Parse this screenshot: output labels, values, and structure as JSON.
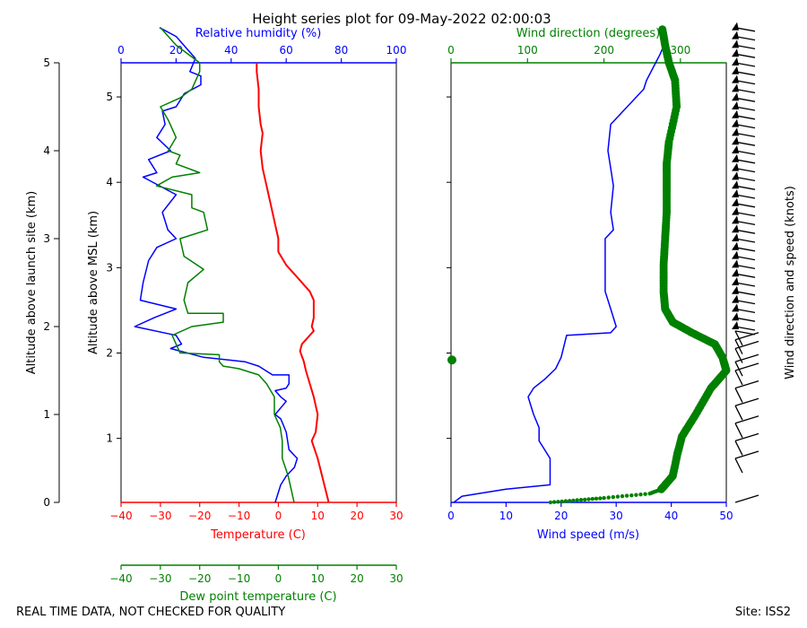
{
  "title": "Height series plot for 09-May-2022 02:00:03",
  "footer_left": "REAL TIME DATA, NOT CHECKED FOR QUALITY",
  "footer_right": "Site: ISS2",
  "colors": {
    "temperature": "#ff0000",
    "dewpoint": "#008000",
    "rh": "#0000ff",
    "wind_speed": "#0000ff",
    "wind_dir": "#008000",
    "barb": "#000000"
  },
  "axes": {
    "alt_launch_label": "Altitude above launch site (km)",
    "alt_launch_ticks": [
      0,
      1,
      2,
      3,
      4,
      5
    ],
    "alt_msl_label": "Altitude above MSL (km)",
    "alt_msl_ticks": [
      1,
      2,
      3,
      4,
      5
    ],
    "temp_label": "Temperature (C)",
    "temp_ticks": [
      -40,
      -30,
      -20,
      -10,
      0,
      10,
      20,
      30
    ],
    "dew_label": "Dew point temperature (C)",
    "dew_ticks": [
      -40,
      -30,
      -20,
      -10,
      0,
      10,
      20,
      30
    ],
    "rh_label": "Relative humidity (%)",
    "rh_ticks": [
      0,
      20,
      40,
      60,
      80,
      100
    ],
    "ws_label": "Wind speed (m/s)",
    "ws_ticks": [
      0,
      10,
      20,
      30,
      40,
      50
    ],
    "wd_label": "Wind direction (degrees)",
    "wd_ticks": [
      0,
      100,
      200,
      300
    ],
    "barb_label": "Wind direction and speed (knots)"
  },
  "chart_data": {
    "type": "line",
    "title": "Height series plot for 09-May-2022 02:00:03",
    "y_launch_range_km": [
      0,
      5
    ],
    "y_msl_range_km": [
      0.25,
      5.4
    ],
    "temp_range": [
      -40,
      30
    ],
    "rh_range": [
      0,
      100
    ],
    "ws_range": [
      0,
      50
    ],
    "wd_range": [
      0,
      360
    ],
    "series": [
      {
        "name": "Temperature (C)",
        "x_units": "C",
        "points": [
          [
            12.8,
            0
          ],
          [
            10,
            0.5
          ],
          [
            8.5,
            0.7
          ],
          [
            9.5,
            0.8
          ],
          [
            10,
            1
          ],
          [
            9,
            1.2
          ],
          [
            8,
            1.35
          ],
          [
            7,
            1.5
          ],
          [
            6.5,
            1.6
          ],
          [
            5.5,
            1.72
          ],
          [
            6,
            1.8
          ],
          [
            8,
            1.9
          ],
          [
            9,
            1.95
          ],
          [
            8.5,
            2
          ],
          [
            9,
            2.1
          ],
          [
            9,
            2.3
          ],
          [
            8,
            2.4
          ],
          [
            7,
            2.45
          ],
          [
            5,
            2.55
          ],
          [
            2,
            2.7
          ],
          [
            0,
            2.85
          ],
          [
            0,
            3
          ],
          [
            -1,
            3.2
          ],
          [
            -2,
            3.4
          ],
          [
            -3,
            3.6
          ],
          [
            -4,
            3.8
          ],
          [
            -4.5,
            4
          ],
          [
            -4,
            4.2
          ],
          [
            -4.5,
            4.3
          ],
          [
            -5,
            4.5
          ],
          [
            -5,
            4.7
          ],
          [
            -5.5,
            4.9
          ],
          [
            -5.5,
            5
          ]
        ]
      },
      {
        "name": "Dew point temperature (C)",
        "x_units": "C",
        "points": [
          [
            4,
            0
          ],
          [
            3,
            0.2
          ],
          [
            2.5,
            0.3
          ],
          [
            1,
            0.5
          ],
          [
            1,
            0.7
          ],
          [
            0.5,
            0.85
          ],
          [
            -1,
            1
          ],
          [
            -1,
            1.2
          ],
          [
            -3,
            1.35
          ],
          [
            -5,
            1.45
          ],
          [
            -10,
            1.52
          ],
          [
            -14,
            1.55
          ],
          [
            -15,
            1.6
          ],
          [
            -15,
            1.68
          ],
          [
            -25,
            1.7
          ],
          [
            -27,
            1.9
          ],
          [
            -22,
            2
          ],
          [
            -14,
            2.05
          ],
          [
            -14,
            2.15
          ],
          [
            -23,
            2.15
          ],
          [
            -24,
            2.3
          ],
          [
            -23,
            2.5
          ],
          [
            -19,
            2.65
          ],
          [
            -24,
            2.8
          ],
          [
            -25,
            3
          ],
          [
            -18,
            3.1
          ],
          [
            -19,
            3.3
          ],
          [
            -22,
            3.35
          ],
          [
            -22,
            3.5
          ],
          [
            -31,
            3.6
          ],
          [
            -27,
            3.7
          ],
          [
            -20,
            3.75
          ],
          [
            -26,
            3.85
          ],
          [
            -25,
            3.95
          ],
          [
            -28,
            4
          ],
          [
            -26,
            4.15
          ],
          [
            -28,
            4.35
          ],
          [
            -30,
            4.5
          ],
          [
            -25,
            4.6
          ],
          [
            -22,
            4.7
          ],
          [
            -20,
            4.9
          ],
          [
            -20,
            5
          ],
          [
            -26,
            5.2
          ],
          [
            -30,
            5.4
          ]
        ]
      },
      {
        "name": "Relative humidity (%)",
        "x_units": "%",
        "points": [
          [
            56,
            0
          ],
          [
            58,
            0.2
          ],
          [
            60,
            0.3
          ],
          [
            63,
            0.4
          ],
          [
            64,
            0.5
          ],
          [
            61,
            0.6
          ],
          [
            60,
            0.8
          ],
          [
            58,
            0.95
          ],
          [
            56,
            1
          ],
          [
            60,
            1.15
          ],
          [
            58,
            1.2
          ],
          [
            56,
            1.27
          ],
          [
            60,
            1.3
          ],
          [
            61,
            1.35
          ],
          [
            61,
            1.45
          ],
          [
            55,
            1.45
          ],
          [
            50,
            1.55
          ],
          [
            45,
            1.6
          ],
          [
            30,
            1.65
          ],
          [
            18,
            1.75
          ],
          [
            22,
            1.8
          ],
          [
            20,
            1.9
          ],
          [
            5,
            2
          ],
          [
            12,
            2.1
          ],
          [
            20,
            2.2
          ],
          [
            7,
            2.3
          ],
          [
            8,
            2.5
          ],
          [
            10,
            2.75
          ],
          [
            13,
            2.9
          ],
          [
            20,
            3
          ],
          [
            17,
            3.1
          ],
          [
            15,
            3.3
          ],
          [
            20,
            3.5
          ],
          [
            8,
            3.7
          ],
          [
            13,
            3.75
          ],
          [
            10,
            3.9
          ],
          [
            18,
            4
          ],
          [
            13,
            4.15
          ],
          [
            16,
            4.3
          ],
          [
            15,
            4.45
          ],
          [
            20,
            4.5
          ],
          [
            23,
            4.65
          ],
          [
            29,
            4.75
          ],
          [
            29,
            4.85
          ],
          [
            25,
            4.9
          ],
          [
            27,
            5.05
          ],
          [
            20,
            5.3
          ],
          [
            14,
            5.4
          ]
        ]
      },
      {
        "name": "Wind speed (m/s)",
        "x_units": "m/s",
        "points": [
          [
            0.5,
            0
          ],
          [
            2,
            0.07
          ],
          [
            10,
            0.15
          ],
          [
            18,
            0.2
          ],
          [
            18,
            0.5
          ],
          [
            16,
            0.7
          ],
          [
            16,
            0.85
          ],
          [
            15,
            1
          ],
          [
            14,
            1.2
          ],
          [
            15,
            1.3
          ],
          [
            17,
            1.4
          ],
          [
            19,
            1.52
          ],
          [
            20,
            1.65
          ],
          [
            21,
            1.9
          ],
          [
            29,
            1.93
          ],
          [
            30,
            2
          ],
          [
            29,
            2.2
          ],
          [
            28,
            2.4
          ],
          [
            28,
            2.8
          ],
          [
            28,
            3
          ],
          [
            29.5,
            3.1
          ],
          [
            29,
            3.3
          ],
          [
            29.5,
            3.6
          ],
          [
            29,
            3.8
          ],
          [
            28.5,
            4
          ],
          [
            29,
            4.3
          ],
          [
            32,
            4.5
          ],
          [
            35,
            4.7
          ],
          [
            35.5,
            4.8
          ],
          [
            38,
            5.1
          ],
          [
            39,
            5.25
          ]
        ]
      },
      {
        "name": "Wind direction (degrees)",
        "x_units": "deg",
        "points": [
          [
            130,
            0
          ],
          [
            200,
            0.05
          ],
          [
            260,
            0.1
          ],
          [
            275,
            0.15
          ],
          [
            290,
            0.3
          ],
          [
            296,
            0.55
          ],
          [
            302,
            0.75
          ],
          [
            320,
            1
          ],
          [
            340,
            1.3
          ],
          [
            360,
            1.5
          ],
          [
            355,
            1.65
          ],
          [
            345,
            1.8
          ],
          [
            315,
            1.93
          ],
          [
            290,
            2.05
          ],
          [
            280,
            2.2
          ],
          [
            278,
            2.4
          ],
          [
            278,
            2.7
          ],
          [
            280,
            3
          ],
          [
            282,
            3.3
          ],
          [
            282,
            3.6
          ],
          [
            282,
            3.85
          ],
          [
            285,
            4.1
          ],
          [
            295,
            4.5
          ],
          [
            293,
            4.8
          ],
          [
            285,
            5
          ],
          [
            280,
            5.2
          ],
          [
            276,
            5.4
          ]
        ]
      },
      {
        "name": "Wind barbs (knots)",
        "x_units": "kt",
        "barb_altitudes_km": [
          0,
          0.5,
          0.7,
          0.9,
          1.1,
          1.3,
          1.5,
          1.6,
          1.75,
          1.85,
          1.95,
          2.0,
          2.1,
          2.2,
          2.3,
          2.4,
          2.5,
          2.6,
          2.7,
          2.8,
          2.9,
          3.0,
          3.1,
          3.2,
          3.3,
          3.4,
          3.5,
          3.6,
          3.7,
          3.8,
          3.9,
          4.0,
          4.1,
          4.2,
          4.3,
          4.4,
          4.5,
          4.6,
          4.7,
          4.8,
          4.9,
          5.0,
          5.1,
          5.2,
          5.3,
          5.4
        ],
        "barb_speed_kt": [
          2,
          34,
          32,
          31,
          29,
          28,
          30,
          33,
          40,
          42,
          41,
          58,
          57,
          56,
          55,
          56,
          56,
          56,
          56,
          56,
          57,
          57,
          57,
          57,
          57,
          57,
          57,
          57,
          57,
          57,
          57,
          57,
          57,
          57,
          60,
          63,
          64,
          66,
          68,
          70,
          71,
          72,
          73,
          74,
          75,
          76
        ]
      }
    ]
  }
}
